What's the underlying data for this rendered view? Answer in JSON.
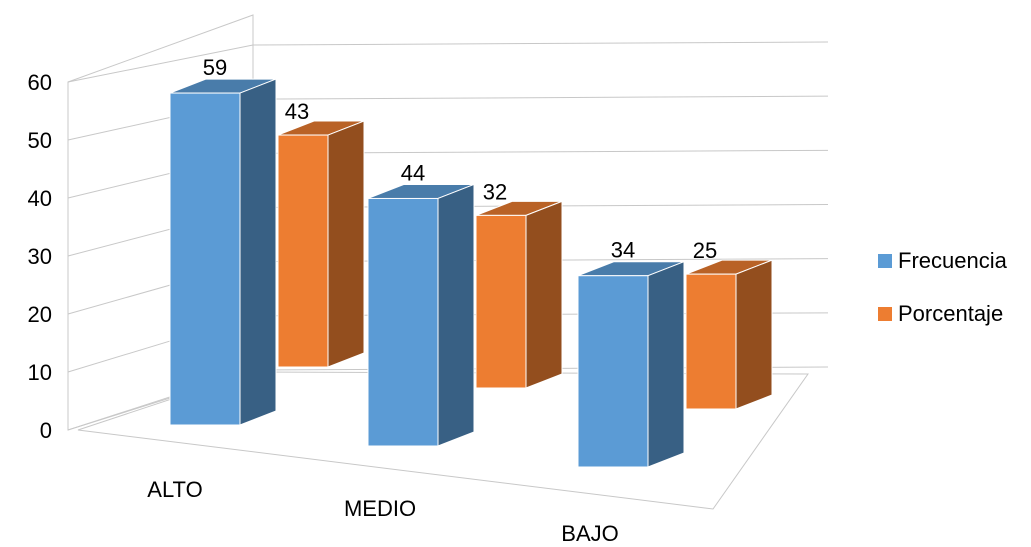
{
  "chart_data": {
    "type": "bar",
    "categories": [
      "ALTO",
      "MEDIO",
      "BAJO"
    ],
    "series": [
      {
        "name": "Frecuencia",
        "values": [
          59,
          44,
          34
        ],
        "color": "#5B9BD5"
      },
      {
        "name": "Porcentaje",
        "values": [
          43,
          32,
          25
        ],
        "color": "#ED7D31"
      }
    ],
    "yticks": [
      "0",
      "10",
      "20",
      "30",
      "40",
      "50",
      "60"
    ],
    "ylim": [
      0,
      60
    ],
    "grid": true,
    "legend": "right"
  }
}
